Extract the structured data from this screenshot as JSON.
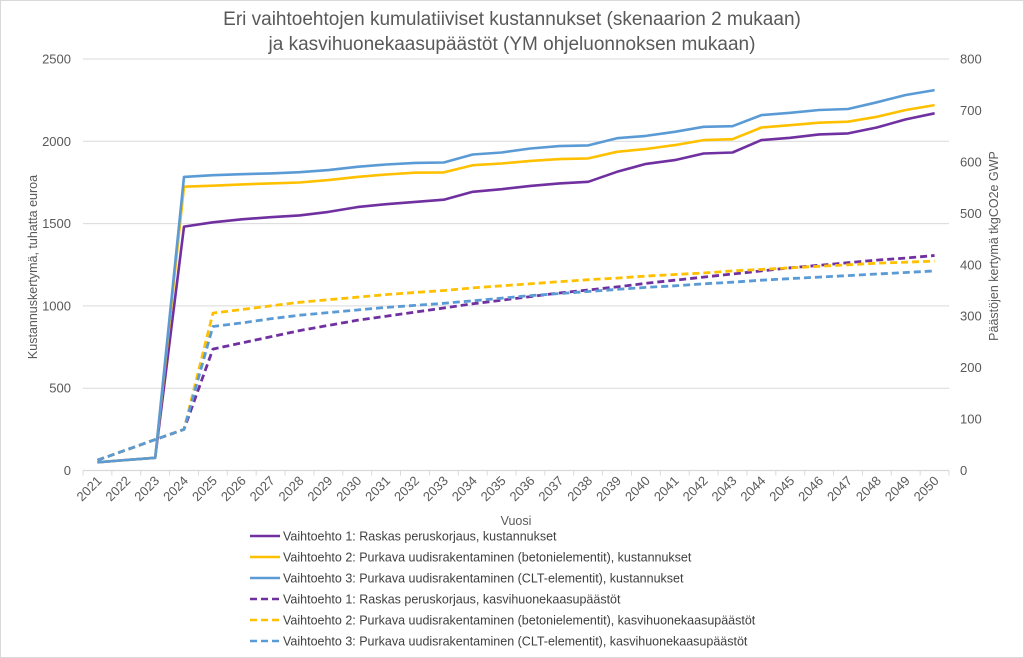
{
  "chart_data": {
    "type": "line",
    "title": [
      "Eri vaihtoehtojen kumulatiiviset kustannukset (skenaarion 2 mukaan)",
      "ja kasvihuonekaasupäästöt (YM ohjeluonnoksen mukaan)"
    ],
    "xlabel": "Vuosi",
    "ylabel": "Kustannuskertymä, tuhatta euroa",
    "y2label": "Päästöjen kertymä tkgCO2e GWP",
    "ylim": [
      0,
      2500
    ],
    "y2lim": [
      0,
      800
    ],
    "yticks": [
      "0",
      "500",
      "1000",
      "1500",
      "2000",
      "2500"
    ],
    "y2ticks": [
      "0",
      "100",
      "200",
      "300",
      "400",
      "500",
      "600",
      "700",
      "800"
    ],
    "grid": true,
    "legend_position": "bottom",
    "categories": [
      "2021",
      "2022",
      "2023",
      "2024",
      "2025",
      "2026",
      "2027",
      "2028",
      "2029",
      "2030",
      "2031",
      "2032",
      "2033",
      "2034",
      "2035",
      "2036",
      "2037",
      "2038",
      "2039",
      "2040",
      "2041",
      "2042",
      "2043",
      "2044",
      "2045",
      "2046",
      "2047",
      "2048",
      "2049",
      "2050"
    ],
    "series": [
      {
        "name": "Vaihtoehto 1: Raskas peruskorjaus, kustannukset",
        "axis": "left",
        "style": "solid",
        "color": "#7030A0",
        "values": [
          50,
          64,
          77,
          1482,
          1508,
          1526,
          1539,
          1550,
          1571,
          1600,
          1618,
          1632,
          1645,
          1693,
          1709,
          1729,
          1744,
          1754,
          1815,
          1863,
          1886,
          1926,
          1932,
          2007,
          2021,
          2042,
          2048,
          2084,
          2133,
          2170
        ]
      },
      {
        "name": "Vaihtoehto 2: Purkava uudisrakentaminen (betonielementit), kustannukset",
        "axis": "left",
        "style": "solid",
        "color": "#FFC000",
        "values": [
          50,
          64,
          77,
          1724,
          1730,
          1738,
          1744,
          1750,
          1764,
          1784,
          1798,
          1809,
          1811,
          1855,
          1865,
          1881,
          1892,
          1896,
          1936,
          1953,
          1977,
          2007,
          2013,
          2084,
          2098,
          2113,
          2119,
          2149,
          2190,
          2220
        ]
      },
      {
        "name": "Vaihtoehto 3: Purkava uudisrakentaminen (CLT-elementit), kustannukset",
        "axis": "left",
        "style": "solid",
        "color": "#5B9BD5",
        "values": [
          50,
          64,
          77,
          1784,
          1794,
          1800,
          1805,
          1812,
          1825,
          1845,
          1859,
          1869,
          1871,
          1920,
          1932,
          1956,
          1971,
          1975,
          2019,
          2033,
          2058,
          2088,
          2092,
          2159,
          2173,
          2190,
          2196,
          2237,
          2281,
          2311
        ]
      },
      {
        "name": "Vaihtoehto 1: Raskas peruskorjaus, kasvihuonekaasupäästöt",
        "axis": "right",
        "style": "dashed",
        "color": "#7030A0",
        "values": [
          20,
          40,
          60,
          80,
          236,
          248,
          260,
          272,
          282,
          292,
          300,
          308,
          316,
          324,
          331,
          338,
          345,
          351,
          357,
          364,
          370,
          376,
          382,
          388,
          394,
          399,
          404,
          409,
          413,
          418
        ]
      },
      {
        "name": "Vaihtoehto 2: Purkava uudisrakentaminen (betonielementit), kasvihuonekaasupäästöt",
        "axis": "right",
        "style": "dashed",
        "color": "#FFC000",
        "values": [
          20,
          40,
          60,
          80,
          306,
          313,
          320,
          327,
          332,
          337,
          342,
          346,
          350,
          355,
          359,
          363,
          367,
          371,
          374,
          378,
          381,
          384,
          388,
          391,
          394,
          397,
          400,
          403,
          405,
          407
        ]
      },
      {
        "name": "Vaihtoehto 3: Purkava uudisrakentaminen (CLT-elementit), kasvihuonekaasupäästöt",
        "axis": "right",
        "style": "dashed",
        "color": "#5B9BD5",
        "values": [
          20,
          40,
          60,
          80,
          280,
          287,
          295,
          302,
          307,
          312,
          317,
          321,
          325,
          330,
          335,
          340,
          344,
          348,
          352,
          356,
          359,
          363,
          366,
          370,
          373,
          376,
          379,
          382,
          385,
          388
        ]
      }
    ]
  }
}
